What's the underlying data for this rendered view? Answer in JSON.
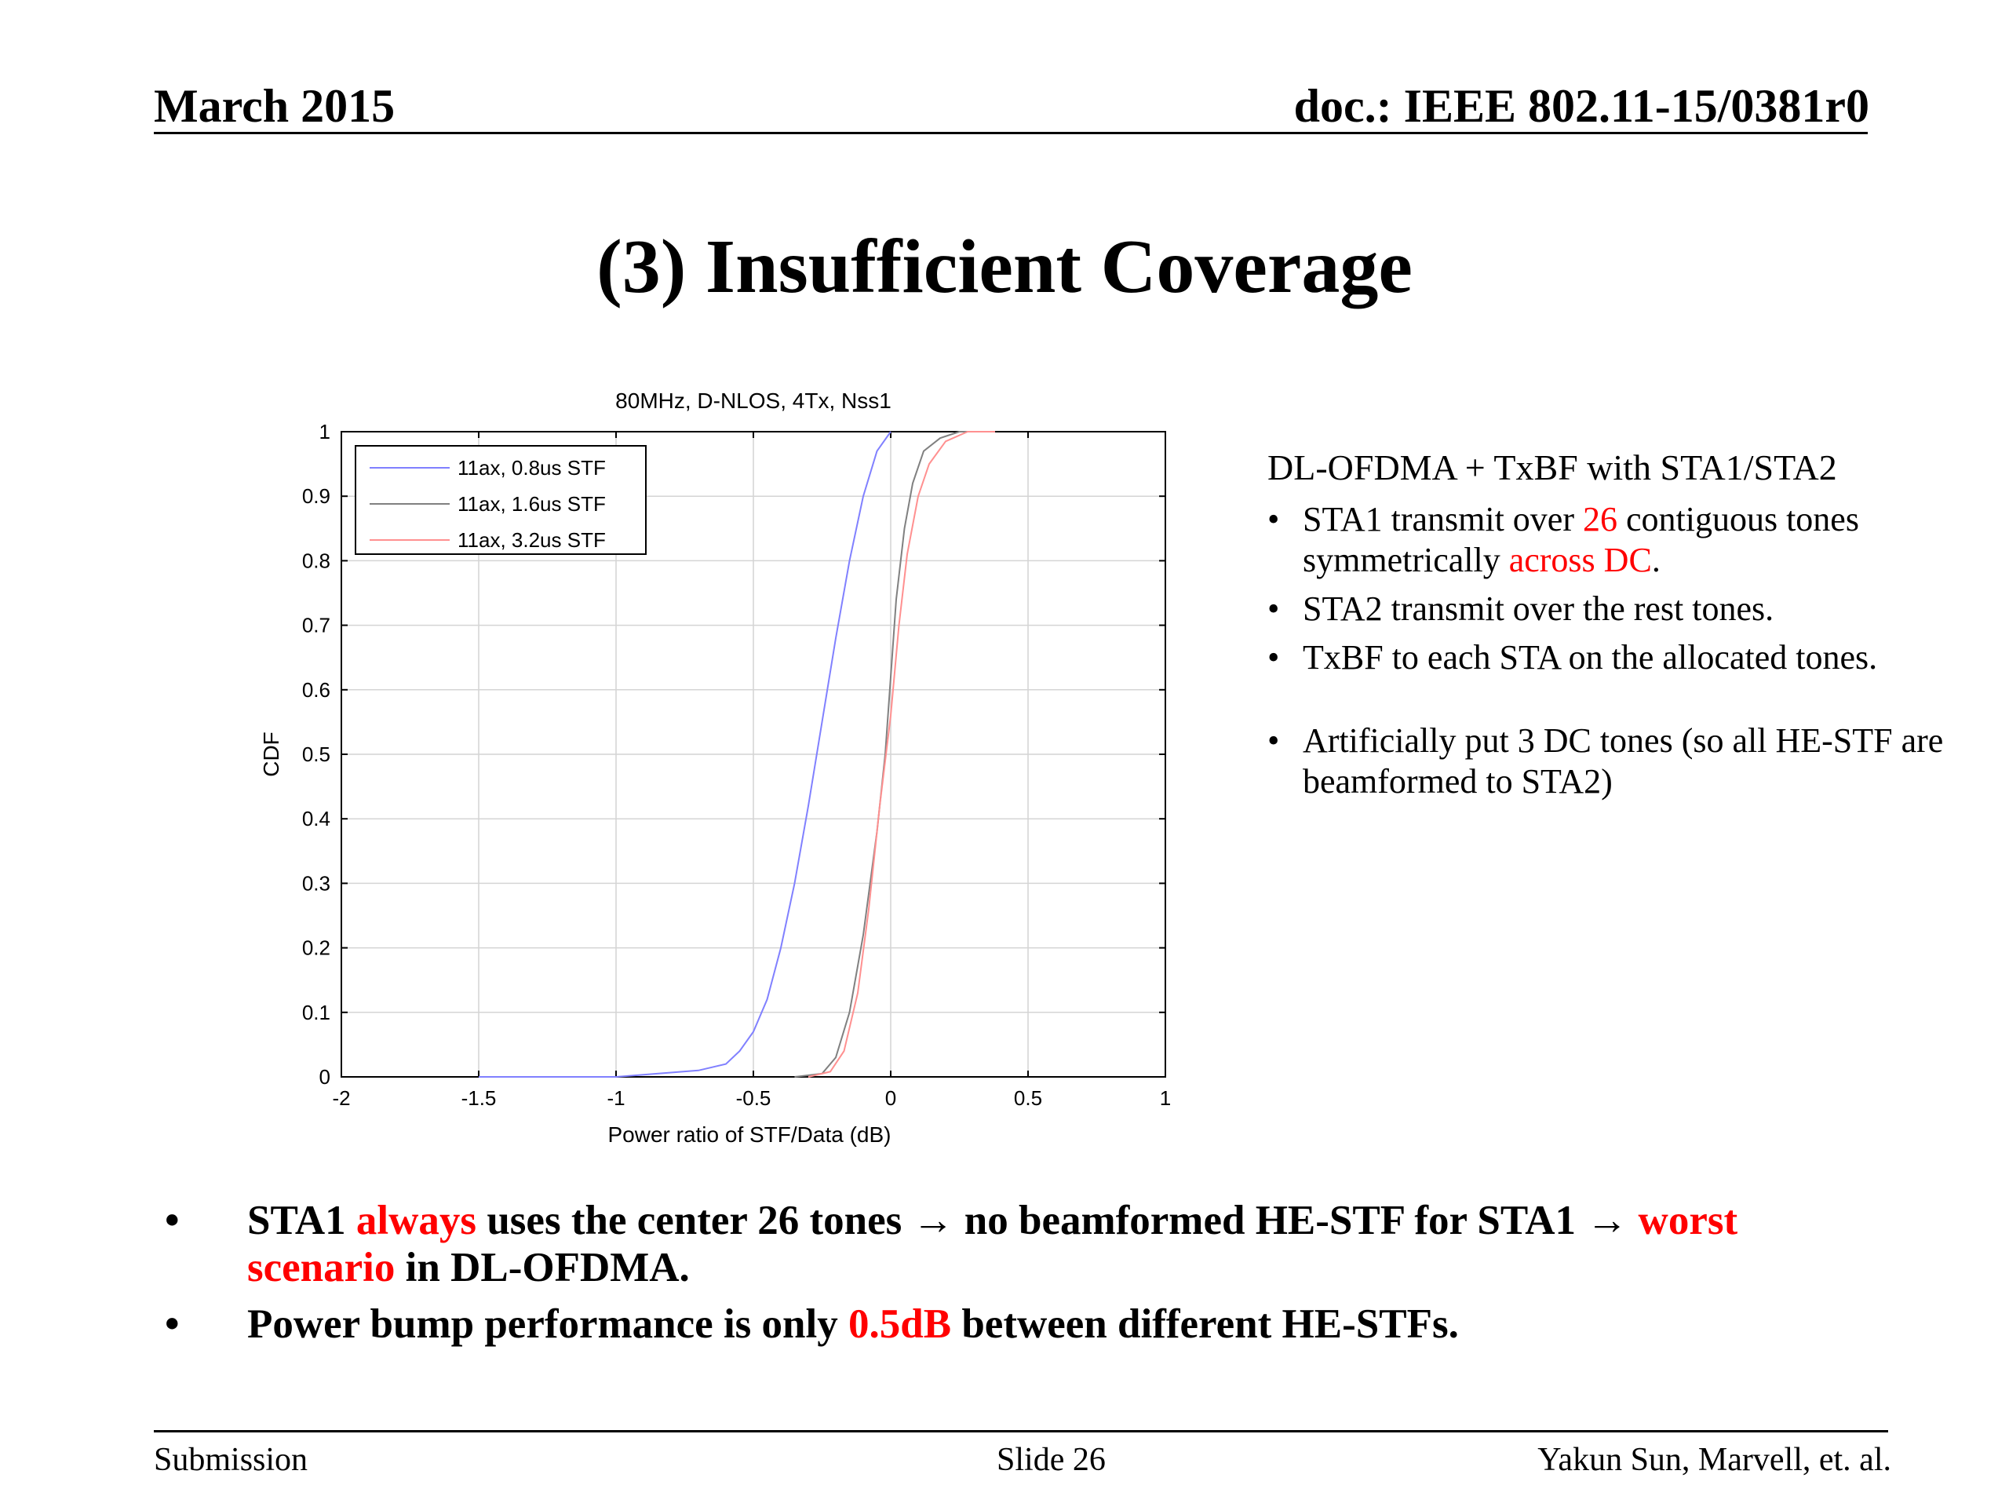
{
  "header": {
    "date": "March 2015",
    "doc": "doc.: IEEE 802.11-15/0381r0"
  },
  "title": "(3) Insufficient Coverage",
  "chart_data": {
    "type": "line",
    "title": "80MHz, D-NLOS, 4Tx, Nss1",
    "xlabel": "Power ratio of STF/Data (dB)",
    "ylabel": "CDF",
    "xlim": [
      -2,
      1
    ],
    "ylim": [
      0,
      1
    ],
    "xticks": [
      -2,
      -1.5,
      -1,
      -0.5,
      0,
      0.5,
      1
    ],
    "xtick_labels": [
      "-2",
      "-1.5",
      "-1",
      "-0.5",
      "0",
      "0.5",
      "1"
    ],
    "yticks": [
      0,
      0.1,
      0.2,
      0.3,
      0.4,
      0.5,
      0.6,
      0.7,
      0.8,
      0.9,
      1
    ],
    "ytick_labels": [
      "0",
      "0.1",
      "0.2",
      "0.3",
      "0.4",
      "0.5",
      "0.6",
      "0.7",
      "0.8",
      "0.9",
      "1"
    ],
    "grid": true,
    "legend_position": "top-left",
    "series": [
      {
        "name": "11ax, 0.8us STF",
        "color": "#8080ff",
        "x": [
          -1.5,
          -1.0,
          -0.85,
          -0.7,
          -0.6,
          -0.55,
          -0.5,
          -0.45,
          -0.4,
          -0.35,
          -0.3,
          -0.25,
          -0.2,
          -0.15,
          -0.1,
          -0.05,
          0.0
        ],
        "y": [
          0.0,
          0.0,
          0.005,
          0.01,
          0.02,
          0.04,
          0.07,
          0.12,
          0.2,
          0.3,
          0.42,
          0.55,
          0.68,
          0.8,
          0.9,
          0.97,
          1.0
        ]
      },
      {
        "name": "11ax, 1.6us STF",
        "color": "#808080",
        "x": [
          -0.35,
          -0.25,
          -0.2,
          -0.15,
          -0.1,
          -0.05,
          -0.02,
          0.0,
          0.02,
          0.05,
          0.08,
          0.12,
          0.18,
          0.25,
          0.35
        ],
        "y": [
          0.0,
          0.005,
          0.03,
          0.1,
          0.22,
          0.38,
          0.5,
          0.62,
          0.74,
          0.85,
          0.92,
          0.97,
          0.99,
          1.0,
          1.0
        ]
      },
      {
        "name": "11ax, 3.2us STF",
        "color": "#ff9090",
        "x": [
          -0.3,
          -0.22,
          -0.17,
          -0.12,
          -0.08,
          -0.04,
          0.0,
          0.03,
          0.06,
          0.1,
          0.14,
          0.2,
          0.28,
          0.38
        ],
        "y": [
          0.0,
          0.008,
          0.04,
          0.13,
          0.26,
          0.42,
          0.56,
          0.7,
          0.81,
          0.9,
          0.95,
          0.985,
          1.0,
          1.0
        ]
      }
    ]
  },
  "right_panel": {
    "heading": "DL-OFDMA + TxBF with STA1/STA2",
    "bullet": "•",
    "items": [
      {
        "pre": "STA1 transmit over ",
        "red1": "26",
        "mid": " contiguous tones symmetrically ",
        "red2": "across DC",
        "post": "."
      },
      {
        "text": "STA2 transmit over the rest tones."
      },
      {
        "text": "TxBF to each STA on the allocated tones."
      }
    ],
    "extra_item": "Artificially put 3 DC tones (so all HE-STF are beamformed to STA2)"
  },
  "bottom": {
    "bullet": "•",
    "item1": {
      "a": "STA1 ",
      "red1": "always",
      "b": " uses the center 26 tones → no beamformed HE-STF for STA1 → ",
      "red2": "worst scenario",
      "c": " in DL-OFDMA."
    },
    "item2": {
      "a": "Power bump performance is only ",
      "red": "0.5dB",
      "b": " between different HE-STFs."
    }
  },
  "footer": {
    "left": "Submission",
    "center": "Slide 26",
    "right": "Yakun Sun,  Marvell, et. al."
  }
}
